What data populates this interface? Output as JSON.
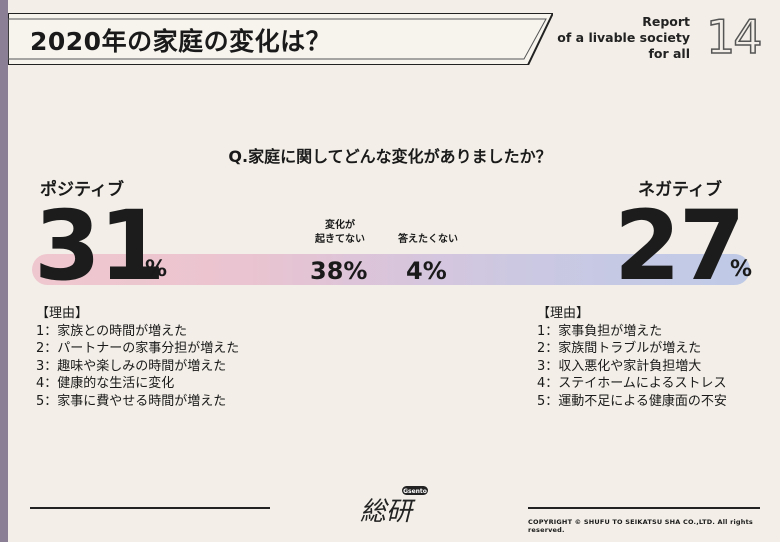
{
  "header": {
    "title": "2020年の家庭の変化は？",
    "report_lines": [
      "Report",
      "of a livable society",
      "for all"
    ],
    "report_number": "14"
  },
  "question": "Q.家庭に関してどんな変化がありましたか？",
  "chart_data": {
    "type": "bar",
    "title": "",
    "categories": [
      "ポジティブ",
      "変化が起きてない",
      "答えたくない",
      "ネガティブ"
    ],
    "values": [
      31,
      38,
      4,
      27
    ],
    "unit": "%"
  },
  "positive": {
    "label": "ポジティブ",
    "value": "31",
    "percent_sign": "%",
    "reasons_head": "【理由】",
    "reasons": [
      "1：家族との時間が増えた",
      "2：パートナーの家事分担が増えた",
      "3：趣味や楽しみの時間が増えた",
      "4：健康的な生活に変化",
      "5：家事に費やせる時間が増えた"
    ]
  },
  "neutral": {
    "no_change_label_1": "変化が",
    "no_change_label_2": "起きてない",
    "no_change_value": "38%",
    "no_answer_label": "答えたくない",
    "no_answer_value": "4%"
  },
  "negative": {
    "label": "ネガティブ",
    "value": "27",
    "percent_sign": "%",
    "reasons_head": "【理由】",
    "reasons": [
      "1：家事負担が増えた",
      "2：家族間トラブルが増えた",
      "3：収入悪化や家計負担増大",
      "4：ステイホームによるストレス",
      "5：運動不足による健康面の不安"
    ]
  },
  "footer": {
    "logo_text": "総研",
    "logo_badge": "Gsento",
    "copyright": "COPYRIGHT © SHUFU TO SEIKATSU SHA CO.,LTD. All rights reserved."
  },
  "colors": {
    "rail": "#8a7f95",
    "gradient_start": "#eec3cc",
    "gradient_end": "#b9c6e6",
    "background": "#f3efe8"
  }
}
